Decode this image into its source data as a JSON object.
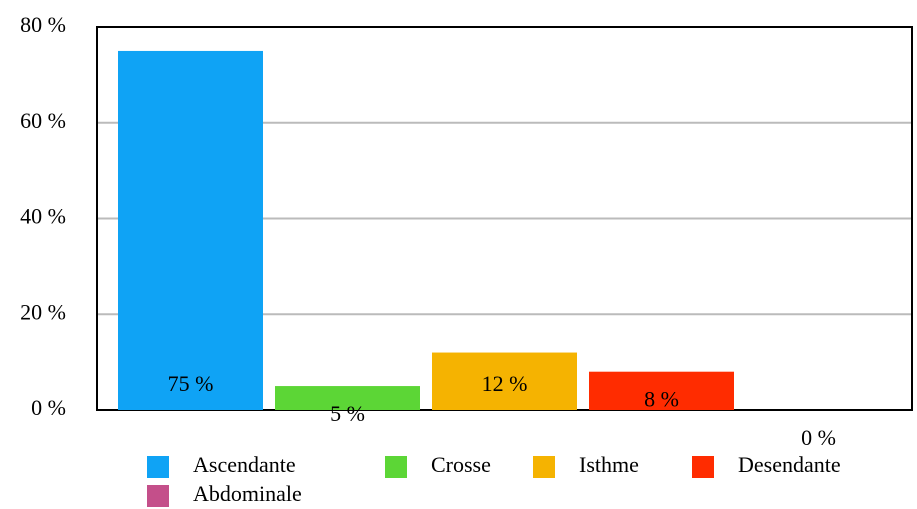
{
  "chart_data": {
    "type": "bar",
    "series": [
      {
        "name": "Ascendante",
        "color": "#0fa3f5",
        "values": [
          75
        ],
        "value_labels": [
          "75 %"
        ]
      },
      {
        "name": "Crosse",
        "color": "#5cd636",
        "values": [
          5
        ],
        "value_labels": [
          "5 %"
        ]
      },
      {
        "name": "Isthme",
        "color": "#f5b301",
        "values": [
          12
        ],
        "value_labels": [
          "12 %"
        ]
      },
      {
        "name": "Desendante",
        "color": "#ff2c00",
        "values": [
          8
        ],
        "value_labels": [
          "8 %"
        ]
      },
      {
        "name": "Abdominale",
        "color": "#c44f8a",
        "values": [
          0
        ],
        "value_labels": [
          "0 %"
        ]
      }
    ],
    "ylim": [
      0,
      80
    ],
    "yticks": [
      {
        "value": 0,
        "label": "0 %"
      },
      {
        "value": 20,
        "label": "20 %"
      },
      {
        "value": 40,
        "label": "40 %"
      },
      {
        "value": 60,
        "label": "60 %"
      },
      {
        "value": 80,
        "label": "80 %"
      }
    ],
    "grid": true
  }
}
